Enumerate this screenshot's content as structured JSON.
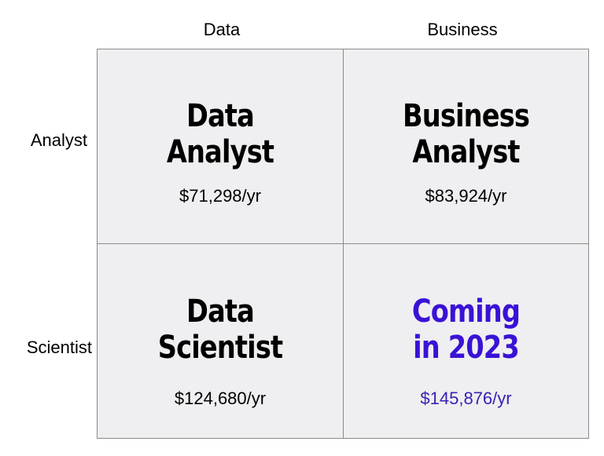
{
  "columns": [
    "Data",
    "Business"
  ],
  "rows": [
    "Analyst",
    "Scientist"
  ],
  "cells": {
    "data_analyst": {
      "title_line1": "Data",
      "title_line2": "Analyst",
      "salary": "$71,298/yr"
    },
    "business_analyst": {
      "title_line1": "Business",
      "title_line2": "Analyst",
      "salary": "$83,924/yr"
    },
    "data_scientist": {
      "title_line1": "Data",
      "title_line2": "Scientist",
      "salary": "$124,680/yr"
    },
    "business_scientist": {
      "title_line1": "Coming",
      "title_line2": "in 2023",
      "salary": "$145,876/yr"
    }
  },
  "colors": {
    "cell_background": "#efeef0",
    "grid_border": "#8a8a8a",
    "text_default": "#000000",
    "highlight_title": "#3a12d6",
    "highlight_salary": "#3a22b4"
  }
}
